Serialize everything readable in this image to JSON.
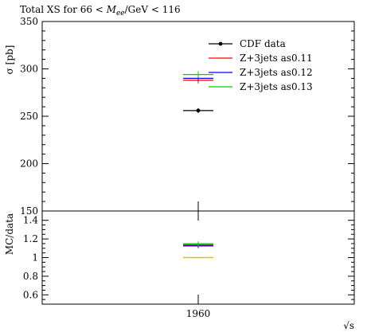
{
  "chart_data": [
    {
      "type": "scatter",
      "title": "Total XS for 66 < M_ee/GeV < 116",
      "title_parts": {
        "prefix": "Total XS for 66 <",
        "var_main": "M",
        "var_sub": "ee",
        "suffix": "/GeV < 116"
      },
      "xlabel": "√s",
      "ylabel": "σ [pb]",
      "x_tick": "1960",
      "ylim": [
        150,
        350
      ],
      "yticks": [
        "150",
        "200",
        "250",
        "300",
        "350"
      ],
      "x": [
        1960
      ],
      "series": [
        {
          "name": "CDF data",
          "color": "#000000",
          "values": [
            256
          ],
          "marker": "point"
        },
        {
          "name": "Z+3jets as0.11",
          "color": "#ff0000",
          "values": [
            288
          ],
          "marker": "line"
        },
        {
          "name": "Z+3jets as0.12",
          "color": "#0000ff",
          "values": [
            290
          ],
          "marker": "line"
        },
        {
          "name": "Z+3jets as0.13",
          "color": "#00cc00",
          "values": [
            294
          ],
          "marker": "line"
        }
      ],
      "legend_position": "top-right"
    },
    {
      "type": "scatter",
      "ylabel": "MC/data",
      "ylim": [
        0.5,
        1.5
      ],
      "yticks": [
        "0.6",
        "0.8",
        "1",
        "1.2",
        "1.4"
      ],
      "x": [
        1960
      ],
      "series": [
        {
          "name": "CDF data",
          "color": "#cccc00",
          "values": [
            1.0
          ]
        },
        {
          "name": "Z+3jets as0.11",
          "color": "#ff0000",
          "values": [
            1.125
          ]
        },
        {
          "name": "Z+3jets as0.12",
          "color": "#0000ff",
          "values": [
            1.133
          ]
        },
        {
          "name": "Z+3jets as0.13",
          "color": "#00cc00",
          "values": [
            1.148
          ]
        }
      ]
    }
  ]
}
